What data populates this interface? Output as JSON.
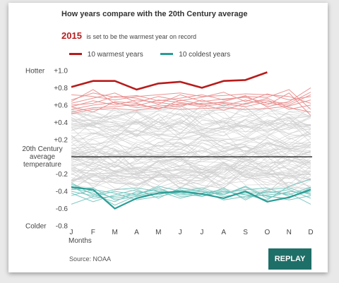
{
  "title": "How years compare with the 20th Century average",
  "subtitle": {
    "year": "2015",
    "text": "is set to be the warmest year on record"
  },
  "legend": [
    {
      "label": "10 warmest years",
      "color": "#b71c1c"
    },
    {
      "label": "10 coldest years",
      "color": "#2a9d95"
    }
  ],
  "source": "Source: NOAA",
  "replay_label": "REPLAY",
  "chart_data": {
    "type": "line",
    "x": [
      "J",
      "F",
      "M",
      "A",
      "M",
      "J",
      "J",
      "A",
      "S",
      "O",
      "N",
      "D"
    ],
    "xlabel": "Months",
    "ylim": [
      -0.8,
      1.0
    ],
    "y_ticks": [
      {
        "value": 1.0,
        "label": "+1.0"
      },
      {
        "value": 0.8,
        "label": "+0.8"
      },
      {
        "value": 0.6,
        "label": "+0.6"
      },
      {
        "value": 0.4,
        "label": "+0.4"
      },
      {
        "value": 0.2,
        "label": "+0.2"
      },
      {
        "value": -0.2,
        "label": "-0.2"
      },
      {
        "value": -0.4,
        "label": "-0.4"
      },
      {
        "value": -0.6,
        "label": "-0.6"
      },
      {
        "value": -0.8,
        "label": "-0.8"
      }
    ],
    "y_end_labels": {
      "top": "Hotter",
      "bottom": "Colder"
    },
    "baseline": {
      "value": 0,
      "label_lines": [
        "20th Century",
        "average",
        "temperature"
      ]
    },
    "highlight": {
      "name": "2015",
      "values": [
        0.81,
        0.88,
        0.88,
        0.78,
        0.85,
        0.87,
        0.8,
        0.88,
        0.89,
        0.98
      ],
      "color": "#b71c1c"
    },
    "warm_color": "#e88a8a",
    "cold_color": "#6fc3bd",
    "background_color": "#cfcfcf",
    "warm_years": [
      {
        "values": [
          0.72,
          0.7,
          0.66,
          0.7,
          0.72,
          0.74,
          0.7,
          0.71,
          0.73,
          0.72,
          0.7,
          0.62
        ]
      },
      {
        "values": [
          0.66,
          0.74,
          0.69,
          0.71,
          0.65,
          0.68,
          0.72,
          0.66,
          0.7,
          0.69,
          0.78,
          0.55
        ]
      },
      {
        "values": [
          0.62,
          0.68,
          0.74,
          0.63,
          0.7,
          0.65,
          0.69,
          0.75,
          0.64,
          0.73,
          0.66,
          0.7
        ]
      },
      {
        "values": [
          0.6,
          0.62,
          0.7,
          0.68,
          0.61,
          0.72,
          0.64,
          0.67,
          0.69,
          0.62,
          0.6,
          0.72
        ]
      },
      {
        "values": [
          0.58,
          0.65,
          0.6,
          0.66,
          0.63,
          0.6,
          0.62,
          0.63,
          0.61,
          0.68,
          0.57,
          0.52
        ]
      },
      {
        "values": [
          0.55,
          0.6,
          0.63,
          0.57,
          0.6,
          0.58,
          0.66,
          0.59,
          0.66,
          0.6,
          0.74,
          0.48
        ]
      },
      {
        "values": [
          0.52,
          0.57,
          0.58,
          0.61,
          0.56,
          0.62,
          0.58,
          0.62,
          0.58,
          0.64,
          0.62,
          0.75
        ]
      },
      {
        "values": [
          0.64,
          0.78,
          0.62,
          0.59,
          0.66,
          0.63,
          0.6,
          0.64,
          0.71,
          0.58,
          0.64,
          0.8
        ]
      },
      {
        "values": [
          0.5,
          0.55,
          0.56,
          0.54,
          0.58,
          0.55,
          0.56,
          0.57,
          0.55,
          0.56,
          0.59,
          0.66
        ]
      },
      {
        "values": [
          0.58,
          0.52,
          0.64,
          0.62,
          0.55,
          0.66,
          0.61,
          0.54,
          0.62,
          0.66,
          0.55,
          0.6
        ]
      }
    ],
    "cold_years": [
      {
        "values": [
          -0.35,
          -0.38,
          -0.6,
          -0.48,
          -0.42,
          -0.4,
          -0.43,
          -0.48,
          -0.4,
          -0.52,
          -0.47,
          -0.38
        ]
      },
      {
        "values": [
          -0.36,
          -0.42,
          -0.56,
          -0.45,
          -0.4,
          -0.42,
          -0.4,
          -0.44,
          -0.35,
          -0.48,
          -0.4,
          -0.42
        ]
      },
      {
        "values": [
          -0.4,
          -0.45,
          -0.52,
          -0.4,
          -0.44,
          -0.38,
          -0.46,
          -0.4,
          -0.44,
          -0.45,
          -0.5,
          -0.45
        ]
      },
      {
        "values": [
          -0.34,
          -0.48,
          -0.46,
          -0.42,
          -0.38,
          -0.44,
          -0.42,
          -0.38,
          -0.48,
          -0.4,
          -0.44,
          -0.35
        ]
      },
      {
        "values": [
          -0.45,
          -0.38,
          -0.42,
          -0.5,
          -0.46,
          -0.41,
          -0.38,
          -0.46,
          -0.42,
          -0.42,
          -0.38,
          -0.48
        ]
      },
      {
        "values": [
          -0.32,
          -0.4,
          -0.48,
          -0.44,
          -0.36,
          -0.46,
          -0.44,
          -0.42,
          -0.38,
          -0.36,
          -0.46,
          -0.4
        ]
      },
      {
        "values": [
          -0.42,
          -0.52,
          -0.44,
          -0.38,
          -0.48,
          -0.36,
          -0.4,
          -0.5,
          -0.46,
          -0.44,
          -0.42,
          -0.55
        ]
      },
      {
        "values": [
          -0.38,
          -0.36,
          -0.5,
          -0.46,
          -0.42,
          -0.42,
          -0.46,
          -0.36,
          -0.5,
          -0.38,
          -0.36,
          -0.44
        ]
      },
      {
        "values": [
          -0.55,
          -0.46,
          -0.4,
          -0.44,
          -0.34,
          -0.4,
          -0.36,
          -0.44,
          -0.34,
          -0.46,
          -0.48,
          -0.36
        ]
      },
      {
        "values": [
          -0.3,
          -0.44,
          -0.38,
          -0.36,
          -0.4,
          -0.48,
          -0.42,
          -0.4,
          -0.44,
          -0.5,
          -0.34,
          -0.26
        ]
      }
    ]
  }
}
